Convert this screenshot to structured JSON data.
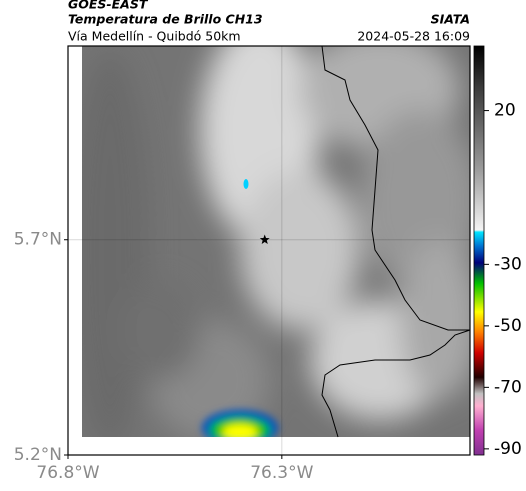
{
  "header": {
    "source": "GOES-EAST",
    "title": "Temperatura de Brillo CH13",
    "agency": "SIATA",
    "region": "Vía Medellín - Quibdó 50km",
    "timestamp": "2024-05-28 16:09"
  },
  "map": {
    "xlim": [
      -76.8,
      -75.86
    ],
    "ylim": [
      5.2,
      6.15
    ],
    "xticks": [
      {
        "value": -76.8,
        "label": "76.8°W"
      },
      {
        "value": -76.3,
        "label": "76.3°W"
      }
    ],
    "yticks": [
      {
        "value": 5.2,
        "label": "5.2°N"
      },
      {
        "value": 5.7,
        "label": "5.7°N"
      }
    ],
    "marker": {
      "lon": -76.34,
      "lat": 5.7
    }
  },
  "colorbar": {
    "clim": [
      -92,
      41
    ],
    "ticks": [
      20,
      -30,
      -50,
      -70,
      -90
    ]
  }
}
